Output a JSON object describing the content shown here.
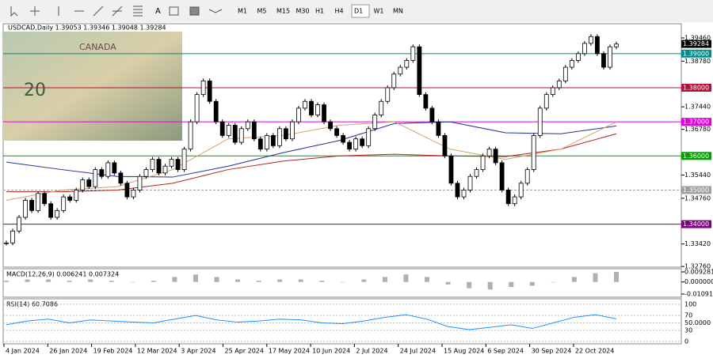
{
  "toolbar": {
    "timeframes": [
      "M1",
      "M5",
      "M15",
      "M30",
      "H1",
      "H4",
      "D1",
      "W1",
      "MN"
    ],
    "active": "D1"
  },
  "chart": {
    "header": "USDCAD,Daily  1.39053 1.39346 1.39048 1.39284",
    "ylim": [
      1.3274,
      1.3983
    ],
    "yticks": [
      {
        "value": 1.3946,
        "label": "1.39460"
      },
      {
        "value": 1.3878,
        "label": "1.38780"
      },
      {
        "value": 1.3744,
        "label": "1.37440"
      },
      {
        "value": 1.3678,
        "label": "1.36780"
      },
      {
        "value": 1.3544,
        "label": "1.35440"
      },
      {
        "value": 1.3476,
        "label": "1.34760"
      },
      {
        "value": 1.3342,
        "label": "1.33420"
      },
      {
        "value": 1.3276,
        "label": "1.32760"
      }
    ],
    "levels": [
      {
        "value": 1.39,
        "label": "1.39000",
        "color": "#008b8b"
      },
      {
        "value": 1.38,
        "label": "1.38000",
        "color": "#b0103a"
      },
      {
        "value": 1.37,
        "label": "1.37000",
        "color": "#e000e0"
      },
      {
        "value": 1.36,
        "label": "1.36000",
        "color": "#00a000"
      },
      {
        "value": 1.35,
        "label": "1.35000",
        "color": "#a0a0a0"
      },
      {
        "value": 1.34,
        "label": "1.34000",
        "color": "#800080"
      }
    ],
    "current_price": {
      "value": 1.39284,
      "label": "1.39284"
    },
    "closes": [
      1.3345,
      1.338,
      1.342,
      1.347,
      1.344,
      1.349,
      1.346,
      1.342,
      1.344,
      1.348,
      1.347,
      1.35,
      1.353,
      1.351,
      1.356,
      1.354,
      1.358,
      1.355,
      1.352,
      1.348,
      1.35,
      1.354,
      1.356,
      1.359,
      1.355,
      1.357,
      1.359,
      1.356,
      1.362,
      1.37,
      1.378,
      1.382,
      1.376,
      1.37,
      1.366,
      1.369,
      1.364,
      1.368,
      1.37,
      1.365,
      1.362,
      1.366,
      1.363,
      1.368,
      1.365,
      1.37,
      1.374,
      1.376,
      1.372,
      1.375,
      1.37,
      1.368,
      1.366,
      1.364,
      1.362,
      1.365,
      1.363,
      1.368,
      1.372,
      1.376,
      1.38,
      1.384,
      1.386,
      1.388,
      1.392,
      1.378,
      1.374,
      1.37,
      1.366,
      1.36,
      1.352,
      1.348,
      1.35,
      1.354,
      1.356,
      1.36,
      1.362,
      1.358,
      1.35,
      1.346,
      1.348,
      1.352,
      1.356,
      1.366,
      1.374,
      1.378,
      1.38,
      1.382,
      1.386,
      1.388,
      1.39,
      1.393,
      1.395,
      1.39,
      1.386,
      1.392,
      1.3928
    ],
    "ma_series": [
      {
        "color": "#1f2f9a",
        "values": [
          1.3582,
          1.356,
          1.354,
          1.3538,
          1.357,
          1.361,
          1.3645,
          1.3695,
          1.37,
          1.3668,
          1.3665,
          1.3688
        ]
      },
      {
        "color": "#b22222",
        "values": [
          1.3495,
          1.3495,
          1.35,
          1.352,
          1.356,
          1.3585,
          1.36,
          1.3605,
          1.36,
          1.3598,
          1.362,
          1.3665
        ]
      },
      {
        "color": "#d2a070",
        "values": [
          1.347,
          1.35,
          1.351,
          1.356,
          1.365,
          1.366,
          1.369,
          1.37,
          1.362,
          1.359,
          1.362,
          1.37
        ]
      }
    ],
    "dates": [
      "4 Jan 2024",
      "26 Jan 2024",
      "19 Feb 2024",
      "12 Mar 2024",
      "3 Apr 2024",
      "25 Apr 2024",
      "17 May 2024",
      "10 Jun 2024",
      "2 Jul 2024",
      "24 Jul 2024",
      "15 Aug 2024",
      "6 Sep 2024",
      "30 Sep 2024",
      "22 Oct 2024"
    ]
  },
  "macd": {
    "label": "MACD(12,26,9) 0.006241 0.007324",
    "ylim": [
      -0.0109,
      0.0093
    ],
    "yticks": [
      {
        "value": 0.009281,
        "label": "0.009281"
      },
      {
        "value": 0,
        "label": "0.000000"
      },
      {
        "value": -0.010914,
        "label": "-0.010914"
      }
    ],
    "values": [
      0.001,
      0.002,
      0.002,
      0.001,
      0.002,
      0.001,
      0.0,
      0.001,
      0.004,
      0.006,
      0.004,
      0.002,
      0.001,
      0.002,
      0.002,
      0.001,
      0.0,
      0.002,
      0.004,
      0.006,
      0.004,
      -0.002,
      -0.005,
      -0.006,
      -0.004,
      -0.003,
      0.0,
      0.004,
      0.007,
      0.008
    ]
  },
  "rsi": {
    "label": "RSI(14) 60.7086",
    "ylim": [
      0,
      100
    ],
    "yticks": [
      100,
      70,
      {
        "value": 50,
        "label": "50.0000"
      },
      30,
      0
    ],
    "values": [
      45,
      55,
      60,
      50,
      58,
      55,
      52,
      50,
      60,
      70,
      58,
      52,
      55,
      60,
      58,
      50,
      48,
      55,
      65,
      72,
      60,
      40,
      32,
      38,
      45,
      35,
      50,
      65,
      72,
      61
    ]
  }
}
